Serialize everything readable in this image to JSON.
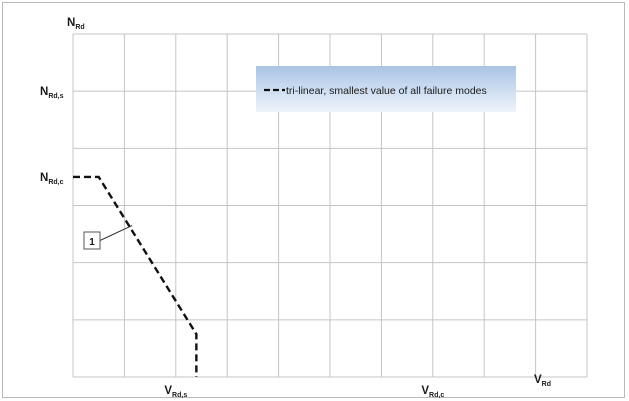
{
  "chart_data": {
    "type": "line",
    "x_axis": {
      "label_main": "V",
      "label_sub": "Rd",
      "range": [
        0,
        10
      ],
      "grid_count": 10,
      "marked_ticks": [
        {
          "value": 2.0,
          "main": "V",
          "sub": "Rd,s"
        },
        {
          "value": 7.0,
          "main": "V",
          "sub": "Rd,c"
        }
      ]
    },
    "y_axis": {
      "label_main": "N",
      "label_sub": "Rd",
      "range": [
        0,
        6
      ],
      "grid_count": 6,
      "marked_ticks": [
        {
          "value": 5.0,
          "main": "N",
          "sub": "Rd,s"
        },
        {
          "value": 3.5,
          "main": "N",
          "sub": "Rd,c"
        }
      ]
    },
    "grid": true,
    "series": [
      {
        "name": "tri-linear, smallest value of all failure modes",
        "style": "dashed",
        "color": "#111111",
        "points": [
          {
            "x": 0.0,
            "y": 3.5
          },
          {
            "x": 0.5,
            "y": 3.5
          },
          {
            "x": 2.4,
            "y": 0.75
          },
          {
            "x": 2.4,
            "y": 0.0
          }
        ]
      }
    ],
    "legend": {
      "placement": "top-right",
      "entries": [
        "tri-linear, smallest value of all failure modes"
      ]
    },
    "annotations": [
      {
        "text": "1",
        "target": {
          "x": 1.15,
          "y": 2.65
        }
      }
    ]
  }
}
